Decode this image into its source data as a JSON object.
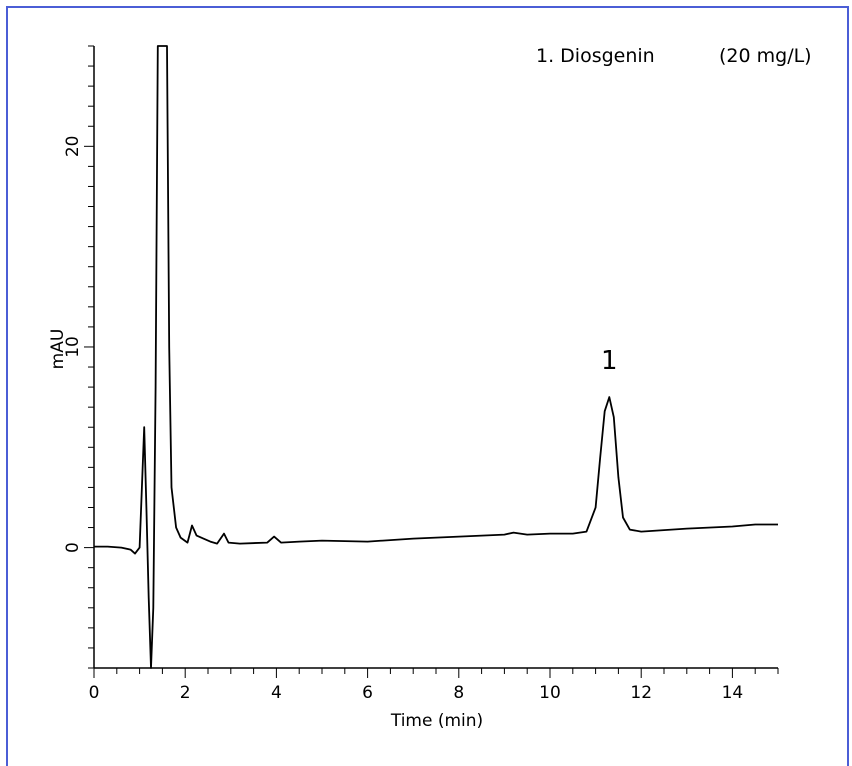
{
  "chart_data": {
    "type": "line",
    "title": "",
    "xlabel": "Time (min)",
    "ylabel": "mAU",
    "xlim": [
      0,
      15
    ],
    "ylim": [
      -6,
      25
    ],
    "x_ticks": [
      0,
      2,
      4,
      6,
      8,
      10,
      12,
      14
    ],
    "y_ticks": [
      0,
      10,
      20
    ],
    "grid": false,
    "legend": {
      "entries": [
        {
          "label": "1. Diosgenin",
          "concentration": "(20 mg/L)"
        }
      ],
      "placement": "top-right"
    },
    "annotations": [
      {
        "text": "1",
        "x": 11.3,
        "y": 8.9
      }
    ],
    "series": [
      {
        "points": [
          [
            0.0,
            0.05
          ],
          [
            0.3,
            0.05
          ],
          [
            0.6,
            0.0
          ],
          [
            0.8,
            -0.1
          ],
          [
            0.9,
            -0.3
          ],
          [
            1.0,
            0.0
          ],
          [
            1.05,
            3.0
          ],
          [
            1.1,
            6.0
          ],
          [
            1.15,
            2.0
          ],
          [
            1.2,
            -2.5
          ],
          [
            1.25,
            -6.0
          ],
          [
            1.3,
            -3.0
          ],
          [
            1.35,
            8.0
          ],
          [
            1.4,
            25.0
          ],
          [
            1.5,
            25.0
          ],
          [
            1.6,
            25.0
          ],
          [
            1.65,
            10.0
          ],
          [
            1.7,
            3.0
          ],
          [
            1.8,
            1.0
          ],
          [
            1.9,
            0.5
          ],
          [
            2.05,
            0.25
          ],
          [
            2.15,
            1.1
          ],
          [
            2.25,
            0.6
          ],
          [
            2.4,
            0.45
          ],
          [
            2.55,
            0.3
          ],
          [
            2.7,
            0.2
          ],
          [
            2.85,
            0.7
          ],
          [
            2.95,
            0.25
          ],
          [
            3.2,
            0.2
          ],
          [
            3.8,
            0.25
          ],
          [
            3.95,
            0.55
          ],
          [
            4.1,
            0.25
          ],
          [
            4.5,
            0.3
          ],
          [
            5.0,
            0.35
          ],
          [
            6.0,
            0.3
          ],
          [
            7.0,
            0.45
          ],
          [
            8.0,
            0.55
          ],
          [
            9.0,
            0.65
          ],
          [
            9.2,
            0.75
          ],
          [
            9.5,
            0.65
          ],
          [
            10.0,
            0.7
          ],
          [
            10.5,
            0.7
          ],
          [
            10.8,
            0.8
          ],
          [
            11.0,
            2.0
          ],
          [
            11.1,
            4.5
          ],
          [
            11.2,
            6.8
          ],
          [
            11.3,
            7.5
          ],
          [
            11.4,
            6.5
          ],
          [
            11.5,
            3.5
          ],
          [
            11.6,
            1.5
          ],
          [
            11.75,
            0.9
          ],
          [
            12.0,
            0.8
          ],
          [
            13.0,
            0.95
          ],
          [
            14.0,
            1.05
          ],
          [
            14.5,
            1.15
          ],
          [
            15.0,
            1.15
          ]
        ]
      }
    ]
  }
}
